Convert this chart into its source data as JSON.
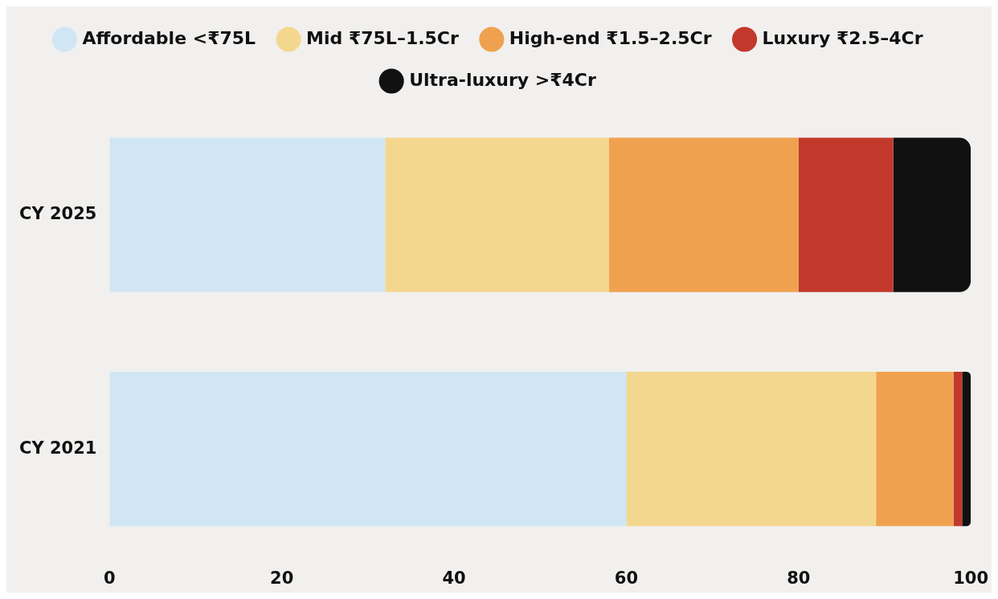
{
  "chart_data": {
    "type": "bar",
    "orientation": "horizontal",
    "stacked": true,
    "categories": [
      "CY 2025",
      "CY 2021"
    ],
    "series": [
      {
        "name": "Affordable <₹75L",
        "color": "#d0e6f4",
        "values": [
          32,
          60
        ]
      },
      {
        "name": "Mid ₹75L–1.5Cr",
        "color": "#f4d78f",
        "values": [
          26,
          29
        ]
      },
      {
        "name": "High-end ₹1.5–2.5Cr",
        "color": "#f0a150",
        "values": [
          22,
          9
        ]
      },
      {
        "name": "Luxury ₹2.5–4Cr",
        "color": "#c2392b",
        "values": [
          11,
          1
        ]
      },
      {
        "name": "Ultra-luxury >₹4Cr",
        "color": "#111111",
        "values": [
          9,
          1
        ]
      }
    ],
    "xlim": [
      0,
      100
    ],
    "xticks": [
      0,
      20,
      40,
      60,
      80,
      100
    ],
    "grid": false,
    "legend": "top"
  }
}
